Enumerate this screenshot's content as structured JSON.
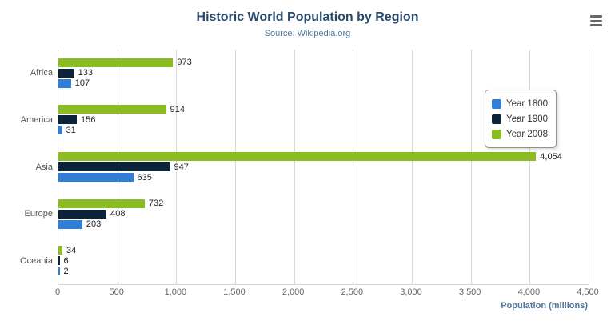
{
  "header": {
    "title": "Historic World Population by Region",
    "subtitle": "Source: Wikipedia.org"
  },
  "menu": {
    "icon": "hamburger-icon"
  },
  "chart_data": {
    "type": "bar",
    "orientation": "horizontal",
    "title": "Historic World Population by Region",
    "subtitle": "Source: Wikipedia.org",
    "categories": [
      "Africa",
      "America",
      "Asia",
      "Europe",
      "Oceania"
    ],
    "series": [
      {
        "name": "Year 1800",
        "color": "#2f7ed8",
        "values": [
          107,
          31,
          635,
          203,
          2
        ]
      },
      {
        "name": "Year 1900",
        "color": "#0d233a",
        "values": [
          133,
          156,
          947,
          408,
          6
        ]
      },
      {
        "name": "Year 2008",
        "color": "#8bbc21",
        "values": [
          973,
          914,
          4054,
          732,
          34
        ]
      }
    ],
    "bar_order_top_to_bottom": [
      "Year 2008",
      "Year 1900",
      "Year 1800"
    ],
    "data_labels": true,
    "data_label_format": "thousands-comma",
    "xlabel": "Population (millions)",
    "x_ticks": [
      "0",
      "500",
      "1,000",
      "1,500",
      "2,000",
      "2,500",
      "3,000",
      "3,500",
      "4,000",
      "4,500"
    ],
    "xlim": [
      0,
      4500
    ],
    "grid": true,
    "legend_position": "right",
    "legend_items": [
      "Year 1800",
      "Year 1900",
      "Year 2008"
    ]
  }
}
